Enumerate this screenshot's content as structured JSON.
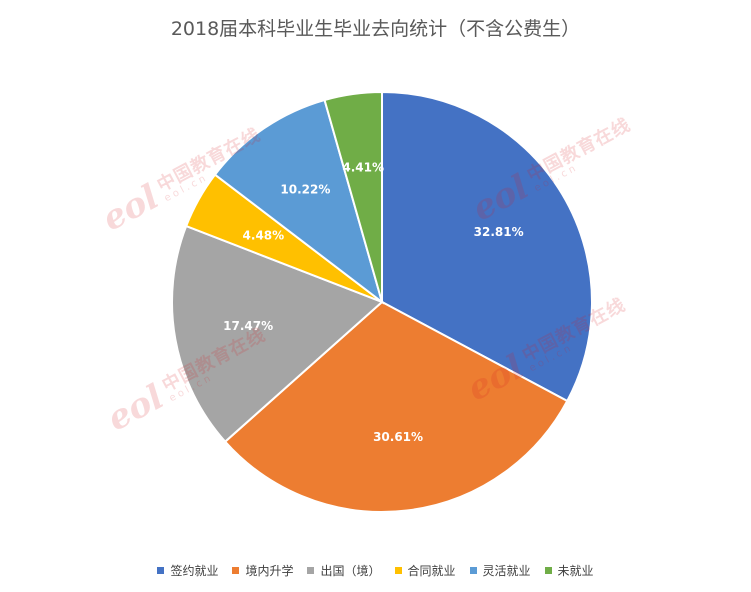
{
  "watermark": {
    "logo_text": "eol",
    "cn_text": "中国教育在线",
    "url_text": "eol.cn"
  },
  "chart_data": {
    "type": "pie",
    "title": "2018届本科毕业生毕业去向统计（不含公费生）",
    "categories": [
      "签约就业",
      "境内升学",
      "出国（境）",
      "合同就业",
      "灵活就业",
      "未就业"
    ],
    "values": [
      32.81,
      30.61,
      17.47,
      4.48,
      10.22,
      4.41
    ],
    "value_labels": [
      "32.81%",
      "30.61%",
      "17.47%",
      "4.48%",
      "10.22%",
      "4.41%"
    ],
    "colors": [
      "#4472c4",
      "#ed7d31",
      "#a5a5a5",
      "#ffc000",
      "#5b9bd5",
      "#70ad47"
    ],
    "legend_position": "bottom",
    "start_angle": "12 o'clock",
    "direction": "clockwise"
  }
}
